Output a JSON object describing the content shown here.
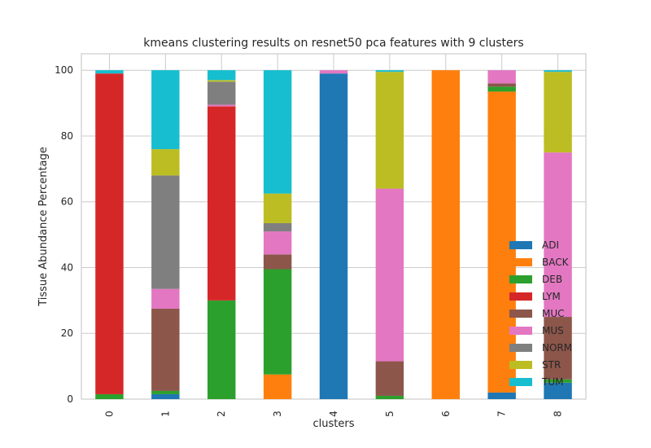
{
  "chart_data": {
    "type": "bar",
    "stacked": true,
    "title": "kmeans clustering results on resnet50 pca features with 9 clusters",
    "xlabel": "clusters",
    "ylabel": "Tissue Abundance Percentage",
    "ylim": [
      0,
      105
    ],
    "yticks": [
      0,
      20,
      40,
      60,
      80,
      100
    ],
    "grid": true,
    "legend_position": "lower-right",
    "categories": [
      "0",
      "1",
      "2",
      "3",
      "4",
      "5",
      "6",
      "7",
      "8"
    ],
    "series": [
      {
        "name": "ADI",
        "color": "#1f77b4",
        "values": [
          0,
          1.5,
          0,
          0,
          99,
          0,
          0,
          2,
          5
        ]
      },
      {
        "name": "BACK",
        "color": "#ff7f0e",
        "values": [
          0,
          0,
          0,
          7.5,
          0,
          0,
          100,
          91.5,
          0
        ]
      },
      {
        "name": "DEB",
        "color": "#2ca02c",
        "values": [
          1.5,
          1,
          30,
          32,
          0,
          1,
          0,
          1.5,
          1
        ]
      },
      {
        "name": "LYM",
        "color": "#d62728",
        "values": [
          97.5,
          0,
          59,
          0,
          0,
          0,
          0,
          0,
          0
        ]
      },
      {
        "name": "MUC",
        "color": "#8c564b",
        "values": [
          0,
          25,
          0,
          4.5,
          0,
          10.5,
          0,
          1,
          19
        ]
      },
      {
        "name": "MUS",
        "color": "#e377c2",
        "values": [
          0,
          6,
          0.5,
          7,
          1,
          52.5,
          0,
          4,
          50
        ]
      },
      {
        "name": "NORM",
        "color": "#7f7f7f",
        "values": [
          0,
          34.5,
          7,
          2.5,
          0,
          0,
          0,
          0,
          0
        ]
      },
      {
        "name": "STR",
        "color": "#bcbd22",
        "values": [
          0,
          8,
          0.5,
          9,
          0,
          35.5,
          0,
          0,
          24.5
        ]
      },
      {
        "name": "TUM",
        "color": "#17becf",
        "values": [
          1,
          24,
          3,
          37.5,
          0,
          0.5,
          0,
          0,
          0.5
        ]
      }
    ]
  }
}
